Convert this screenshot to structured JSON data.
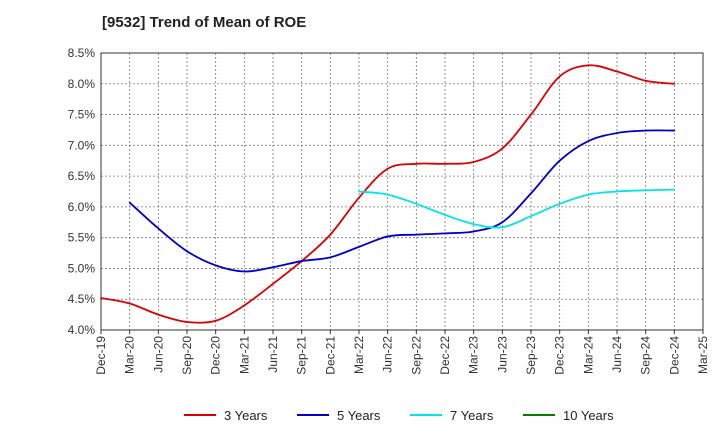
{
  "chart_data": {
    "type": "line",
    "title": "[9532]  Trend of Mean of ROE",
    "xlabel": "",
    "ylabel": "",
    "x_tick_labels": [
      "Dec-19",
      "Mar-20",
      "Jun-20",
      "Sep-20",
      "Dec-20",
      "Mar-21",
      "Jun-21",
      "Sep-21",
      "Dec-21",
      "Mar-22",
      "Jun-22",
      "Sep-22",
      "Dec-22",
      "Mar-23",
      "Jun-23",
      "Sep-23",
      "Dec-23",
      "Mar-24",
      "Jun-24",
      "Sep-24",
      "Dec-24",
      "Mar-25"
    ],
    "y_tick_labels": [
      "4.0%",
      "4.5%",
      "5.0%",
      "5.5%",
      "6.0%",
      "6.5%",
      "7.0%",
      "7.5%",
      "8.0%",
      "8.5%"
    ],
    "ylim": [
      4.0,
      8.5
    ],
    "grid": true,
    "legend_position": "bottom",
    "series": [
      {
        "name": "3 Years",
        "color": "#dd0000",
        "values": [
          4.52,
          4.43,
          4.25,
          4.13,
          4.15,
          4.4,
          4.75,
          5.12,
          5.55,
          6.15,
          6.62,
          6.7,
          6.7,
          6.73,
          6.95,
          7.5,
          8.12,
          8.3,
          8.2,
          8.05,
          8.0,
          null
        ]
      },
      {
        "name": "5 Years",
        "color": "#0000cc",
        "values": [
          null,
          6.07,
          5.65,
          5.28,
          5.05,
          4.95,
          5.02,
          5.12,
          5.18,
          5.35,
          5.52,
          5.55,
          5.57,
          5.6,
          5.75,
          6.22,
          6.75,
          7.07,
          7.2,
          7.24,
          7.24,
          null
        ]
      },
      {
        "name": "7 Years",
        "color": "#00e5e5",
        "values": [
          null,
          null,
          null,
          null,
          null,
          null,
          null,
          null,
          null,
          6.25,
          6.2,
          6.05,
          5.87,
          5.72,
          5.67,
          5.85,
          6.05,
          6.2,
          6.25,
          6.27,
          6.28,
          null
        ]
      },
      {
        "name": "10 Years",
        "color": "#008000",
        "values": [
          null,
          null,
          null,
          null,
          null,
          null,
          null,
          null,
          null,
          null,
          null,
          null,
          null,
          null,
          null,
          null,
          null,
          null,
          null,
          null,
          null,
          null
        ]
      }
    ]
  }
}
